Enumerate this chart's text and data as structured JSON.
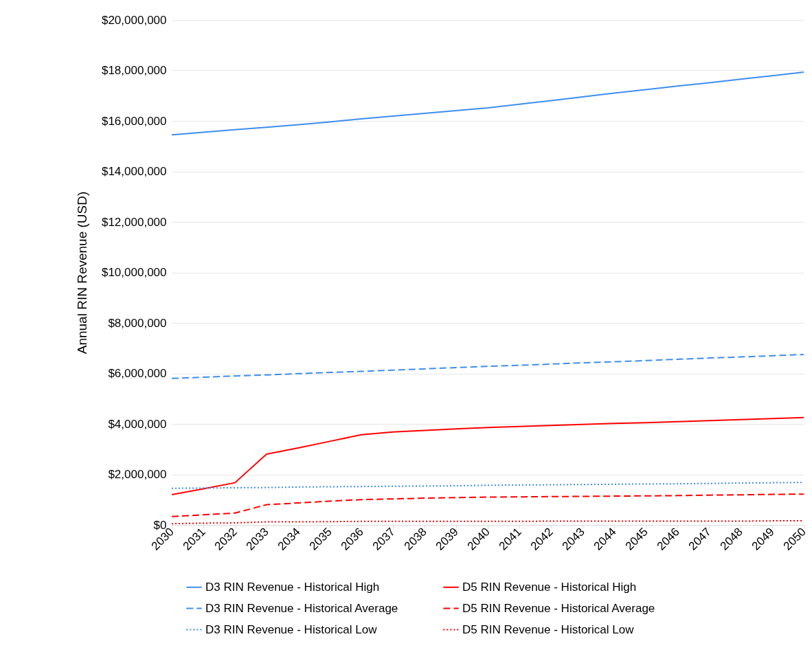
{
  "chart_data": {
    "type": "line",
    "ylabel": "Annual RIN Revenue (USD)",
    "categories": [
      "2030",
      "2031",
      "2032",
      "2033",
      "2034",
      "2035",
      "2036",
      "2037",
      "2038",
      "2039",
      "2040",
      "2041",
      "2042",
      "2043",
      "2044",
      "2045",
      "2046",
      "2047",
      "2048",
      "2049",
      "2050"
    ],
    "ylim": [
      0,
      20000000
    ],
    "yticks": [
      {
        "value": 0,
        "label": "$0"
      },
      {
        "value": 2000000,
        "label": "$2,000,000"
      },
      {
        "value": 4000000,
        "label": "$4,000,000"
      },
      {
        "value": 6000000,
        "label": "$6,000,000"
      },
      {
        "value": 8000000,
        "label": "$8,000,000"
      },
      {
        "value": 10000000,
        "label": "$10,000,000"
      },
      {
        "value": 12000000,
        "label": "$12,000,000"
      },
      {
        "value": 14000000,
        "label": "$14,000,000"
      },
      {
        "value": 16000000,
        "label": "$16,000,000"
      },
      {
        "value": 18000000,
        "label": "$18,000,000"
      },
      {
        "value": 20000000,
        "label": "$20,000,000"
      }
    ],
    "grid": "y",
    "legend": "bottom",
    "marker": "none",
    "series": [
      {
        "name": "D3 RIN Revenue - Historical High",
        "color": "#3d8ef0",
        "line_style": "solid",
        "values": [
          15450000,
          15550000,
          15650000,
          15750000,
          15850000,
          15960000,
          16080000,
          16190000,
          16300000,
          16410000,
          16520000,
          16660000,
          16800000,
          16950000,
          17100000,
          17240000,
          17380000,
          17510000,
          17650000,
          17790000,
          17930000
        ]
      },
      {
        "name": "D5 RIN Revenue - Historical High",
        "color": "#ff0000",
        "line_style": "solid",
        "values": [
          1200000,
          1430000,
          1670000,
          2800000,
          3050000,
          3310000,
          3570000,
          3680000,
          3740000,
          3800000,
          3860000,
          3900000,
          3940000,
          3980000,
          4020000,
          4050000,
          4090000,
          4130000,
          4170000,
          4210000,
          4250000
        ]
      },
      {
        "name": "D3 RIN Revenue - Historical Average",
        "color": "#3d8ef0",
        "line_style": "dashed",
        "values": [
          5800000,
          5850000,
          5900000,
          5940000,
          5990000,
          6040000,
          6080000,
          6130000,
          6180000,
          6230000,
          6280000,
          6320000,
          6370000,
          6420000,
          6460000,
          6510000,
          6560000,
          6610000,
          6650000,
          6700000,
          6750000
        ]
      },
      {
        "name": "D5 RIN Revenue - Historical Average",
        "color": "#ff0000",
        "line_style": "dashed",
        "values": [
          330000,
          400000,
          470000,
          800000,
          870000,
          940000,
          1000000,
          1030000,
          1060000,
          1080000,
          1100000,
          1110000,
          1120000,
          1130000,
          1140000,
          1150000,
          1160000,
          1180000,
          1190000,
          1210000,
          1220000
        ]
      },
      {
        "name": "D3 RIN Revenue - Historical Low",
        "color": "#3d8ef0",
        "line_style": "dotted",
        "values": [
          1450000,
          1460000,
          1470000,
          1480000,
          1500000,
          1510000,
          1520000,
          1530000,
          1540000,
          1550000,
          1570000,
          1580000,
          1590000,
          1600000,
          1610000,
          1620000,
          1630000,
          1640000,
          1660000,
          1670000,
          1680000
        ]
      },
      {
        "name": "D5 RIN Revenue - Historical Low",
        "color": "#ff0000",
        "line_style": "dotted",
        "values": [
          50000,
          70000,
          80000,
          120000,
          120000,
          130000,
          140000,
          140000,
          140000,
          140000,
          140000,
          140000,
          150000,
          150000,
          150000,
          150000,
          150000,
          150000,
          150000,
          160000,
          160000
        ]
      }
    ]
  }
}
